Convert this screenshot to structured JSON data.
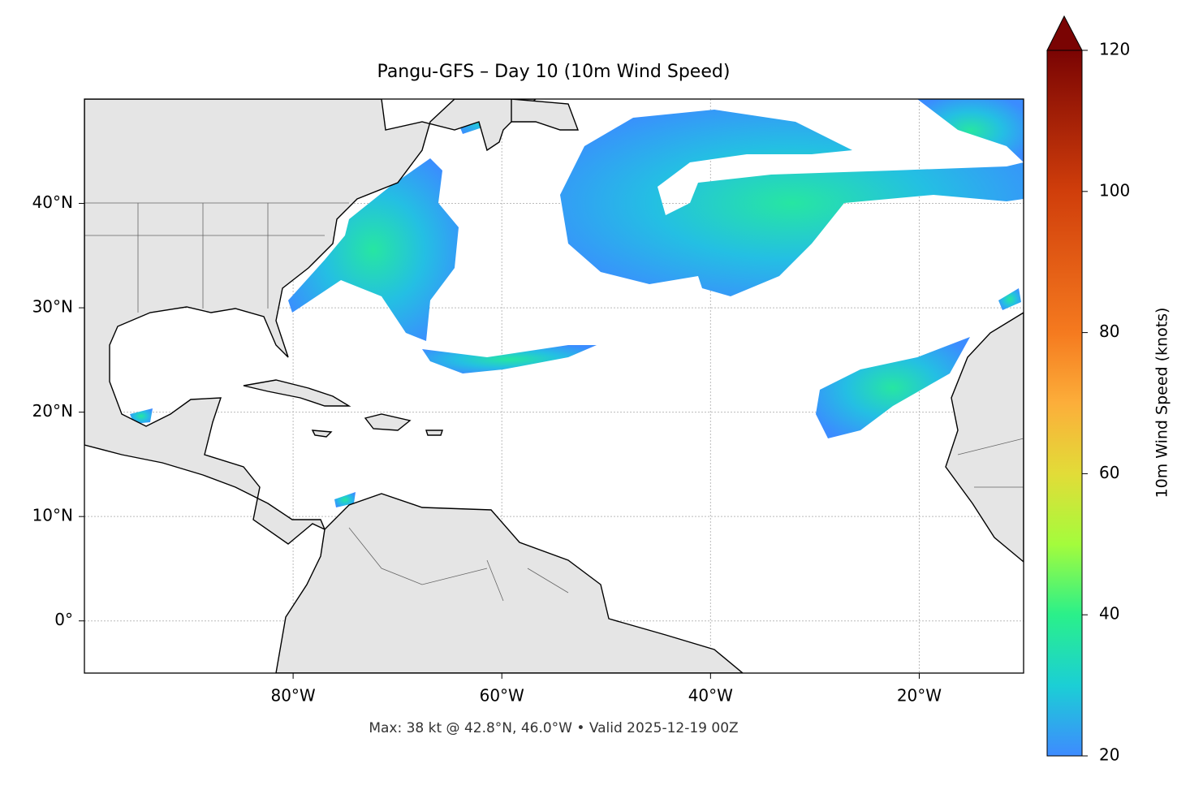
{
  "title": "Pangu-GFS – Day 10 (10m Wind Speed)",
  "footer": "Max: 38 kt @ 42.8°N, 46.0°W • Valid 2025-12-19 00Z",
  "map": {
    "xlim": [
      -100,
      -10
    ],
    "ylim": [
      -5,
      50
    ],
    "grid": true,
    "xticks": [
      {
        "value": -80,
        "label": "80°W"
      },
      {
        "value": -60,
        "label": "60°W"
      },
      {
        "value": -40,
        "label": "40°W"
      },
      {
        "value": -20,
        "label": "20°W"
      }
    ],
    "yticks": [
      {
        "value": 0,
        "label": "0°"
      },
      {
        "value": 10,
        "label": "10°N"
      },
      {
        "value": 20,
        "label": "20°N"
      },
      {
        "value": 30,
        "label": "30°N"
      },
      {
        "value": 40,
        "label": "40°N"
      }
    ]
  },
  "colorbar": {
    "label": "10m Wind Speed (knots)",
    "clim": [
      20,
      120
    ],
    "ticks": [
      20,
      40,
      60,
      80,
      100,
      120
    ]
  }
}
